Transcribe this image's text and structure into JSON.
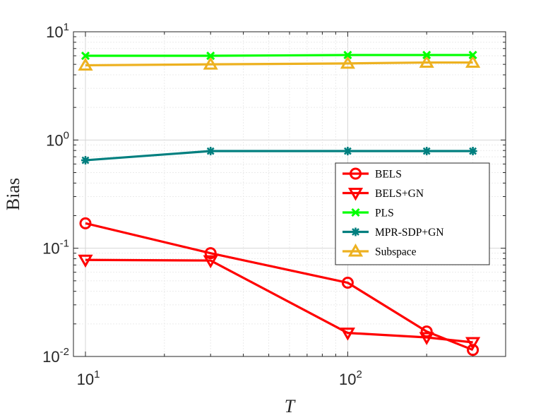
{
  "chart_data": {
    "type": "line",
    "title": "",
    "xlabel": "T",
    "ylabel": "Bias",
    "xscale": "log",
    "yscale": "log",
    "xlim": [
      9,
      400
    ],
    "ylim": [
      0.01,
      10
    ],
    "grid": true,
    "legend_position": "right-middle",
    "xticks": [
      {
        "value": 10,
        "base": "10",
        "exp": "1"
      },
      {
        "value": 100,
        "base": "10",
        "exp": "2"
      }
    ],
    "yticks": [
      {
        "value": 0.01,
        "base": "10",
        "exp": "-2"
      },
      {
        "value": 0.1,
        "base": "10",
        "exp": "-1"
      },
      {
        "value": 1,
        "base": "10",
        "exp": "0"
      },
      {
        "value": 10,
        "base": "10",
        "exp": "1"
      }
    ],
    "x": [
      10,
      30,
      100,
      200,
      300
    ],
    "series": [
      {
        "name": "BELS",
        "color": "#ff0000",
        "marker": "circle",
        "values": [
          0.17,
          0.09,
          0.048,
          0.017,
          0.0115
        ]
      },
      {
        "name": "BELS+GN",
        "color": "#ff0000",
        "marker": "triangle-down",
        "values": [
          0.078,
          0.077,
          0.0165,
          0.015,
          0.0135
        ]
      },
      {
        "name": "PLS",
        "color": "#00ff00",
        "marker": "x",
        "values": [
          6.0,
          6.0,
          6.1,
          6.1,
          6.1
        ]
      },
      {
        "name": "MPR-SDP+GN",
        "color": "#007f7f",
        "marker": "asterisk",
        "values": [
          0.65,
          0.79,
          0.79,
          0.79,
          0.79
        ]
      },
      {
        "name": "Subspace",
        "color": "#edb120",
        "marker": "triangle-up",
        "values": [
          4.9,
          5.0,
          5.1,
          5.2,
          5.2
        ]
      }
    ]
  }
}
